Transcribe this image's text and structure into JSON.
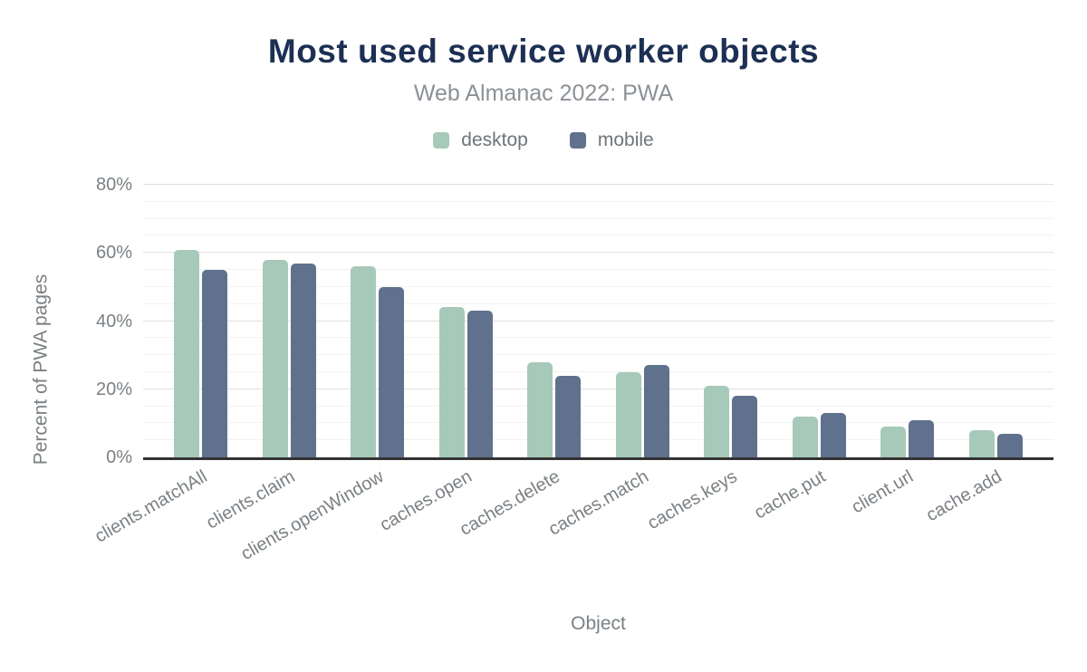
{
  "header": {
    "title": "Most used service worker objects",
    "subtitle": "Web Almanac 2022: PWA"
  },
  "legend": [
    {
      "label": "desktop",
      "color": "#a7c9b9"
    },
    {
      "label": "mobile",
      "color": "#5f718c"
    }
  ],
  "colors": {
    "desktop_bar": "#a7c9b9",
    "mobile_bar": "#5f718c",
    "title_text": "#1d3054",
    "subtitle_text": "#8c9196",
    "axis_text": "#7b8084",
    "axis_line": "#333333",
    "grid_minor": "#f2f2f2",
    "grid_major": "#e0e0e0"
  },
  "chart_data": {
    "type": "bar",
    "title": "Most used service worker objects",
    "subtitle": "Web Almanac 2022: PWA",
    "categories": [
      "clients.matchAll",
      "clients.claim",
      "clients.openWindow",
      "caches.open",
      "caches.delete",
      "caches.match",
      "caches.keys",
      "cache.put",
      "client.url",
      "cache.add"
    ],
    "series": [
      {
        "name": "desktop",
        "color": "#a7c9b9",
        "values": [
          61,
          58,
          56,
          44,
          28,
          25,
          21,
          12,
          9,
          8
        ]
      },
      {
        "name": "mobile",
        "color": "#5f718c",
        "values": [
          55,
          57,
          50,
          43,
          24,
          27,
          18,
          13,
          11,
          7
        ]
      }
    ],
    "xlabel": "Object",
    "ylabel": "Percent of PWA pages",
    "ylim": [
      0,
      80
    ],
    "y_major_ticks": [
      0,
      20,
      40,
      60,
      80
    ],
    "y_major_tick_labels": [
      "0%",
      "20%",
      "40%",
      "60%",
      "80%"
    ],
    "y_minor_step": 5,
    "grid": true,
    "legend_position": "top",
    "x_label_rotation": -30
  }
}
